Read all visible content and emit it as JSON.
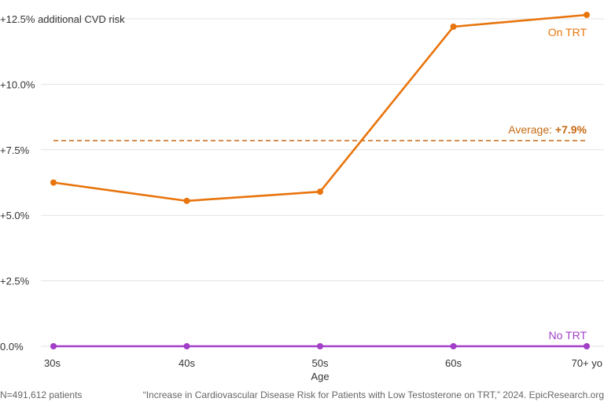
{
  "chart_data": {
    "type": "line",
    "ylabel": "additional CVD risk",
    "xlabel": "Age",
    "categories": [
      "30s",
      "40s",
      "50s",
      "60s",
      "70+ yo"
    ],
    "ylim": [
      0,
      12.5
    ],
    "yticks": [
      "0.0%",
      "+2.5%",
      "+5.0%",
      "+7.5%",
      "+10.0%",
      "+12.5% additional CVD risk"
    ],
    "ytick_values": [
      0,
      2.5,
      5.0,
      7.5,
      10.0,
      12.5
    ],
    "grid": true,
    "series": [
      {
        "name": "On TRT",
        "values": [
          6.25,
          5.55,
          5.9,
          12.2,
          12.65
        ],
        "color": "#e8740c"
      },
      {
        "name": "No TRT",
        "values": [
          0,
          0,
          0,
          0,
          0
        ],
        "color": "#a23ec8"
      }
    ],
    "average": {
      "label": "Average: ",
      "value_label": "+7.9%",
      "value": 7.85,
      "color": "#c76a12"
    }
  },
  "footer": {
    "left": "N=491,612 patients",
    "right": "“Increase in Cardiovascular Disease Risk for Patients with Low Testosterone on TRT,” 2024. EpicResearch.org"
  }
}
